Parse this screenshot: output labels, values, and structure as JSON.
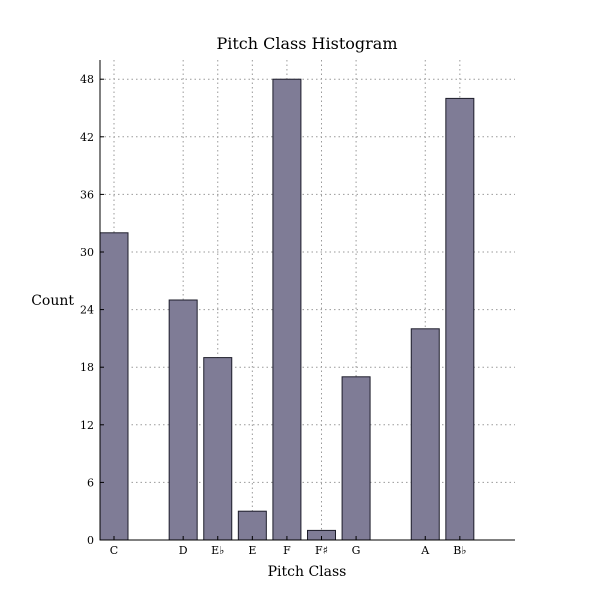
{
  "chart_data": {
    "type": "bar",
    "title": "Pitch Class Histogram",
    "xlabel": "Pitch Class",
    "ylabel": "Count",
    "x": [
      0,
      2,
      3,
      4,
      5,
      6,
      7,
      9,
      10
    ],
    "categories": [
      "C",
      "D",
      "E♭",
      "E",
      "F",
      "F♯",
      "G",
      "A",
      "B♭"
    ],
    "values": [
      32,
      25,
      19,
      3,
      48,
      1,
      17,
      22,
      46
    ],
    "xlim": [
      0,
      12
    ],
    "ylim": [
      0,
      50
    ],
    "yticks": [
      0,
      6,
      12,
      18,
      24,
      30,
      36,
      42,
      48
    ],
    "grid": true,
    "bar_color": "#7f7c96",
    "bar_edge_color": "#1d1d2a"
  }
}
